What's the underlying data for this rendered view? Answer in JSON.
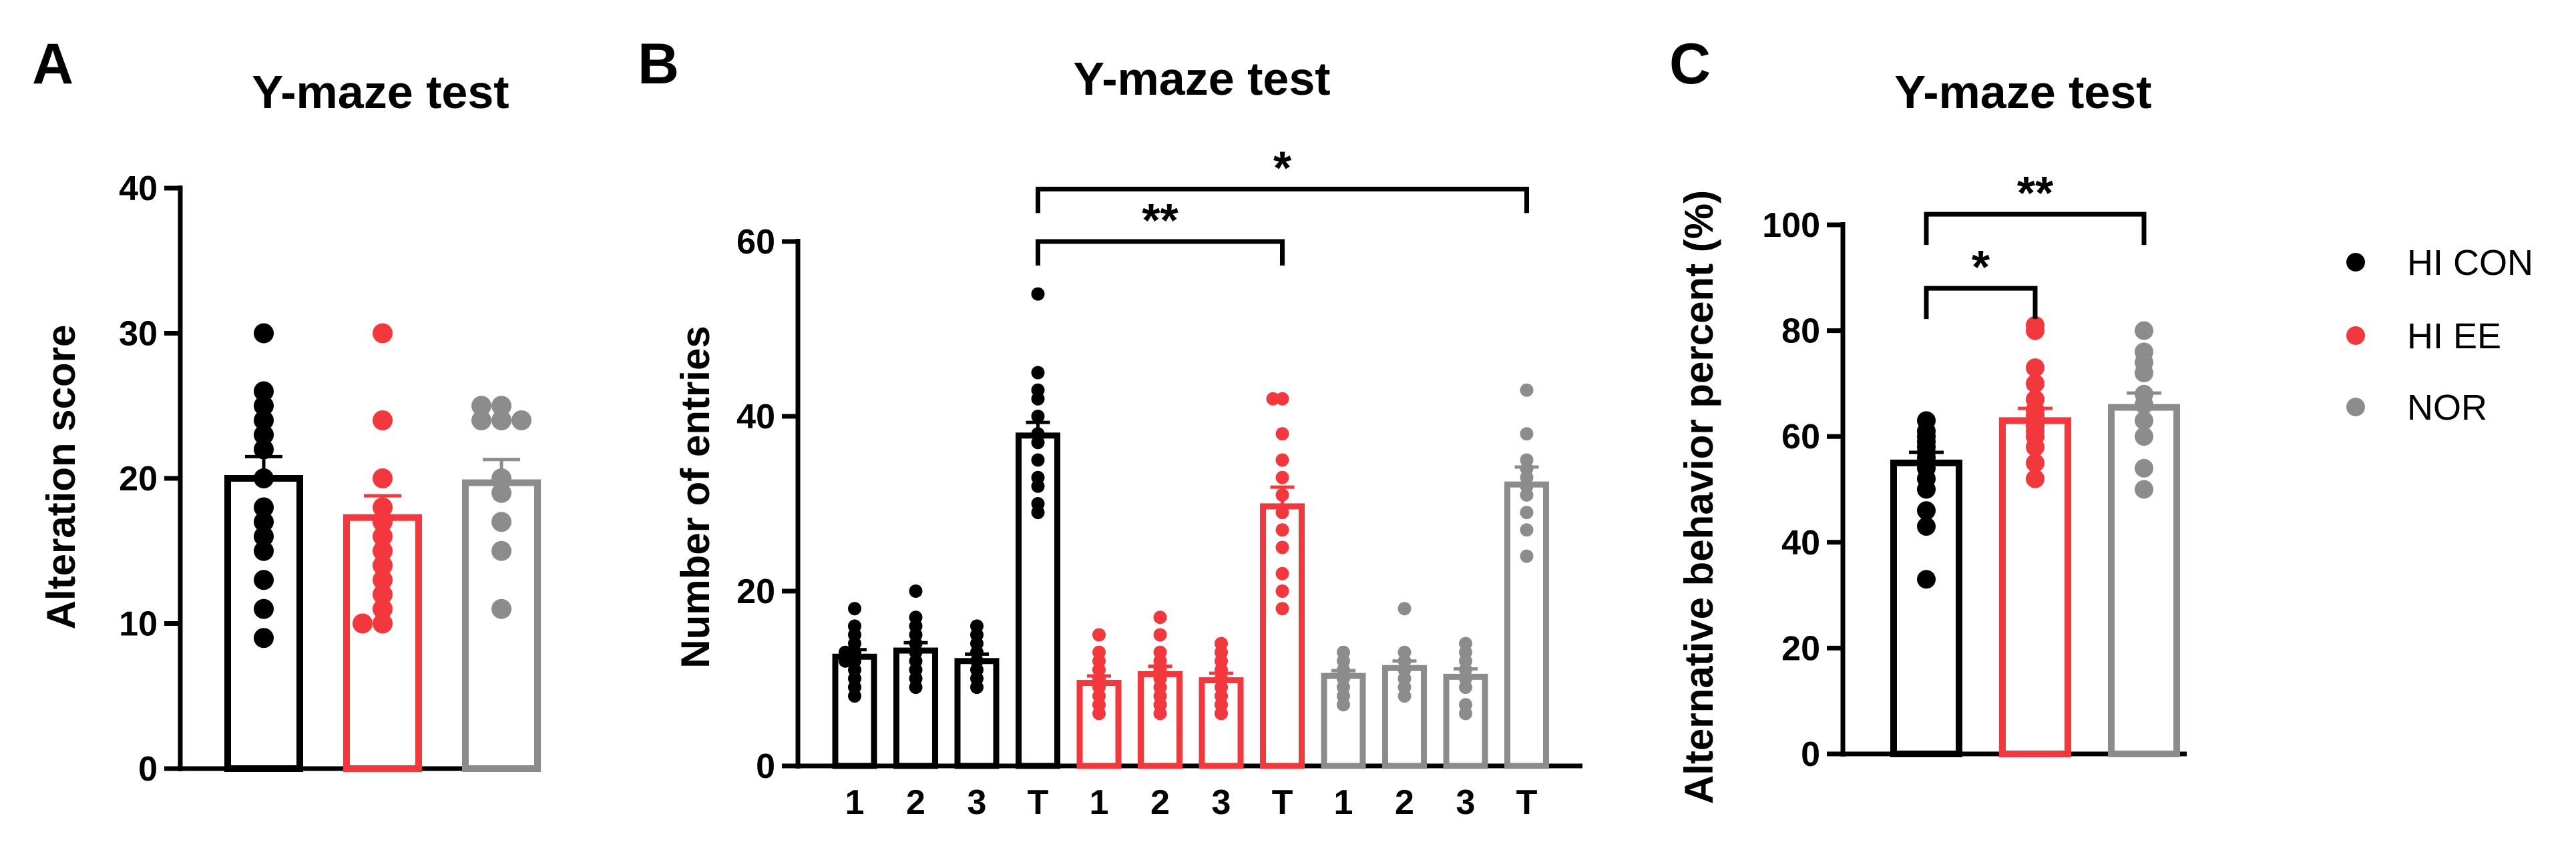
{
  "legend": {
    "items": [
      {
        "label": "HI CON",
        "color": "#000000"
      },
      {
        "label": "HI EE",
        "color": "#f2373d"
      },
      {
        "label": "NOR",
        "color": "#8c8c8c"
      }
    ]
  },
  "chart_data": [
    {
      "panel": "A",
      "type": "bar",
      "title": "Y-maze test",
      "ylabel": "Alteration score",
      "xlabel": "",
      "ylim": [
        0,
        40
      ],
      "yticks": [
        0,
        10,
        20,
        30,
        40
      ],
      "series": [
        {
          "name": "HI CON",
          "color": "#000000",
          "mean": 20,
          "sem": 1.5,
          "points": [
            30,
            26,
            25,
            24,
            23,
            22,
            20,
            18,
            17,
            16,
            15,
            13,
            11,
            9
          ]
        },
        {
          "name": "HI EE",
          "color": "#f2373d",
          "mean": 17.3,
          "sem": 1.5,
          "points": [
            30,
            24,
            20,
            18,
            17,
            16,
            15,
            14,
            13,
            12,
            11,
            10,
            10
          ]
        },
        {
          "name": "NOR",
          "color": "#8c8c8c",
          "mean": 19.7,
          "sem": 1.6,
          "points": [
            25,
            25,
            24,
            24,
            24,
            20,
            19,
            17,
            15,
            11
          ]
        }
      ]
    },
    {
      "panel": "B",
      "type": "bar",
      "title": "Y-maze test",
      "ylabel": "Number of entries",
      "xlabel": "",
      "ylim": [
        0,
        60
      ],
      "yticks": [
        0,
        20,
        40,
        60
      ],
      "categories": [
        "1",
        "2",
        "3",
        "T",
        "1",
        "2",
        "3",
        "T",
        "1",
        "2",
        "3",
        "T"
      ],
      "bars": [
        {
          "group": "HI CON",
          "color": "#000000",
          "mean": 12.5,
          "sem": 0.8,
          "points": [
            18,
            16,
            15,
            14,
            13,
            13,
            12,
            12,
            11,
            10,
            9,
            8
          ]
        },
        {
          "group": "HI CON",
          "color": "#000000",
          "mean": 13.2,
          "sem": 0.9,
          "points": [
            20,
            17,
            16,
            15,
            14,
            13,
            12,
            11,
            10,
            9
          ]
        },
        {
          "group": "HI CON",
          "color": "#000000",
          "mean": 12,
          "sem": 0.8,
          "points": [
            16,
            15,
            14,
            13,
            12,
            11,
            10,
            9
          ]
        },
        {
          "group": "HI CON",
          "color": "#000000",
          "mean": 37.8,
          "sem": 1.5,
          "points": [
            54,
            45,
            43,
            42,
            40,
            38,
            37,
            35,
            33,
            32,
            30,
            29
          ]
        },
        {
          "group": "HI EE",
          "color": "#f2373d",
          "mean": 9.5,
          "sem": 0.8,
          "points": [
            15,
            13,
            12,
            11,
            10,
            9,
            8,
            7,
            6
          ]
        },
        {
          "group": "HI EE",
          "color": "#f2373d",
          "mean": 10.5,
          "sem": 0.9,
          "points": [
            17,
            15,
            13,
            12,
            11,
            10,
            9,
            8,
            7,
            6
          ]
        },
        {
          "group": "HI EE",
          "color": "#f2373d",
          "mean": 9.8,
          "sem": 0.8,
          "points": [
            14,
            13,
            12,
            11,
            10,
            9,
            8,
            7,
            6
          ]
        },
        {
          "group": "HI EE",
          "color": "#f2373d",
          "mean": 29.7,
          "sem": 2.2,
          "points": [
            42,
            42,
            38,
            35,
            33,
            31,
            29,
            27,
            25,
            22,
            20,
            18
          ]
        },
        {
          "group": "NOR",
          "color": "#8c8c8c",
          "mean": 10.3,
          "sem": 0.6,
          "points": [
            13,
            12,
            11,
            10,
            9,
            8,
            7
          ]
        },
        {
          "group": "NOR",
          "color": "#8c8c8c",
          "mean": 11.2,
          "sem": 0.8,
          "points": [
            18,
            13,
            12,
            11,
            10,
            9,
            8
          ]
        },
        {
          "group": "NOR",
          "color": "#8c8c8c",
          "mean": 10.2,
          "sem": 0.9,
          "points": [
            14,
            13,
            12,
            11,
            10,
            9,
            7,
            6
          ]
        },
        {
          "group": "NOR",
          "color": "#8c8c8c",
          "mean": 32.2,
          "sem": 2.0,
          "points": [
            43,
            38,
            35,
            34,
            33,
            32,
            31,
            29,
            27,
            24
          ]
        }
      ],
      "annotations": [
        {
          "from_bar": 3,
          "to_bar": 7,
          "label": "**",
          "level": 60
        },
        {
          "from_bar": 3,
          "to_bar": 11,
          "label": "*",
          "level": 66
        }
      ]
    },
    {
      "panel": "C",
      "type": "bar",
      "title": "Y-maze test",
      "ylabel": "Alternative behavior percent (%)",
      "xlabel": "",
      "ylim": [
        0,
        100
      ],
      "yticks": [
        0,
        20,
        40,
        60,
        80,
        100
      ],
      "series": [
        {
          "name": "HI CON",
          "color": "#000000",
          "mean": 55,
          "sem": 2.0,
          "points": [
            63,
            61,
            60,
            59,
            58,
            57,
            56,
            55,
            54,
            52,
            50,
            46,
            43,
            33
          ]
        },
        {
          "name": "HI EE",
          "color": "#f2373d",
          "mean": 63,
          "sem": 2.3,
          "points": [
            81,
            80,
            73,
            70,
            67,
            65,
            64,
            62,
            61,
            60,
            58,
            55,
            52
          ]
        },
        {
          "name": "NOR",
          "color": "#8c8c8c",
          "mean": 65.5,
          "sem": 2.7,
          "points": [
            80,
            76,
            74,
            72,
            68,
            66,
            63,
            60,
            54,
            50
          ]
        }
      ],
      "annotations": [
        {
          "from_bar": 0,
          "to_bar": 1,
          "label": "*",
          "level": 88
        },
        {
          "from_bar": 0,
          "to_bar": 2,
          "label": "**",
          "level": 102
        }
      ]
    }
  ],
  "panels": [
    {
      "letter": "A"
    },
    {
      "letter": "B"
    },
    {
      "letter": "C"
    }
  ]
}
